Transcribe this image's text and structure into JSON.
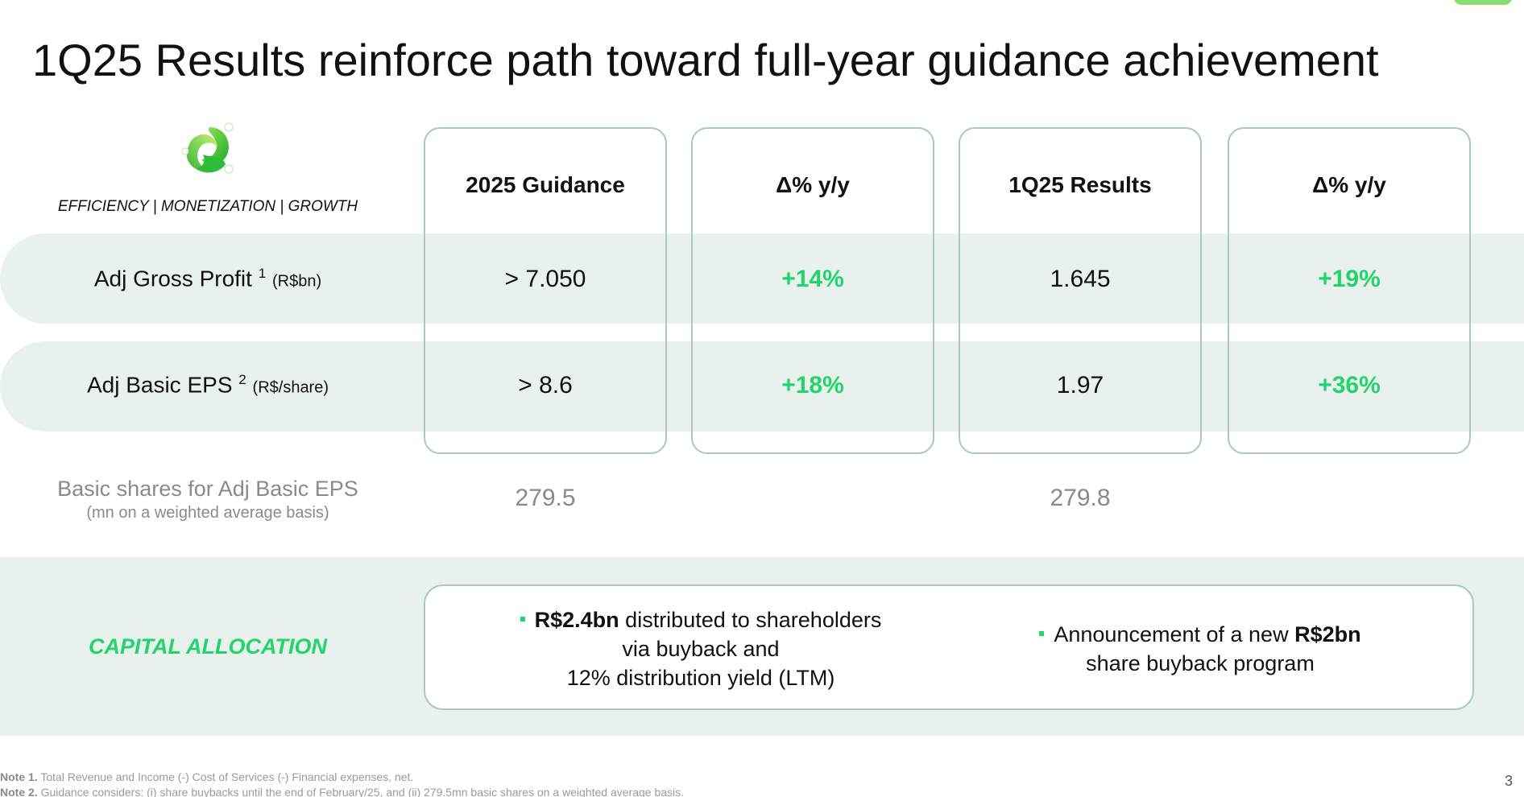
{
  "title": "1Q25 Results reinforce path toward full-year guidance achievement",
  "tagline": "EFFICIENCY | MONETIZATION | GROWTH",
  "columns": [
    {
      "header": "2025 Guidance"
    },
    {
      "header": "Δ% y/y"
    },
    {
      "header": "1Q25 Results"
    },
    {
      "header": "Δ% y/y"
    }
  ],
  "rows": [
    {
      "label": "Adj Gross Profit",
      "note": "1",
      "unit": "(R$bn)",
      "values": [
        "> 7.050",
        "+14%",
        "1.645",
        "+19%"
      ]
    },
    {
      "label": "Adj Basic EPS",
      "note": "2",
      "unit": "(R$/share)",
      "values": [
        "> 8.6",
        "+18%",
        "1.97",
        "+36%"
      ]
    }
  ],
  "shares": {
    "label": "Basic shares for Adj Basic EPS",
    "sublabel": "(mn on a weighted average basis)",
    "guidance": "279.5",
    "results": "279.8"
  },
  "capital_allocation": {
    "label": "CAPITAL ALLOCATION",
    "item1": {
      "bold": "R$2.4bn",
      "line1_rest": " distributed to shareholders",
      "line2": "via buyback and",
      "line3": "12% distribution yield (LTM)"
    },
    "item2": {
      "line1_prefix": "Announcement of a new ",
      "bold": "R$2bn",
      "line2": "share buyback program"
    }
  },
  "notes": [
    {
      "tag": "Note 1.",
      "text": " Total Revenue and Income (-) Cost of Services (-) Financial expenses, net."
    },
    {
      "tag": "Note 2.",
      "text": " Guidance considers: (i) share buybacks until the end of February/25, and (ii) 279.5mn basic shares on a weighted average basis."
    }
  ],
  "page_number": "3",
  "colors": {
    "accent_green": "#22d46a",
    "band": "#e9f1ee",
    "box_border": "#a9c9bf"
  }
}
